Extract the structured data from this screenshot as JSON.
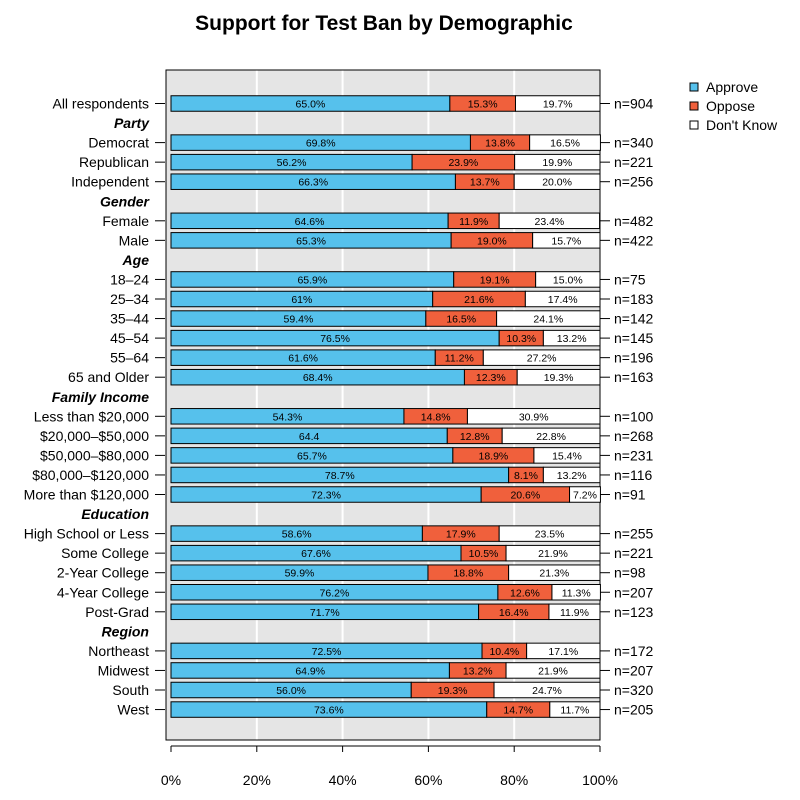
{
  "chart_data": {
    "type": "bar",
    "orientation": "horizontal",
    "stacked": true,
    "title": "Support for Test Ban by Demographic",
    "xlabel": "",
    "ylabel": "",
    "xlim": [
      0,
      100
    ],
    "x_ticks": [
      "0%",
      "20%",
      "40%",
      "60%",
      "80%",
      "100%"
    ],
    "grid": true,
    "legend_position": "top-right",
    "series": [
      {
        "name": "Approve",
        "color": "#56c1ec"
      },
      {
        "name": "Oppose",
        "color": "#f0603c"
      },
      {
        "name": "Don't Know",
        "color": "#ffffff"
      }
    ],
    "rows": [
      {
        "kind": "row",
        "label": "All respondents",
        "values": [
          65.0,
          15.3,
          19.7
        ],
        "texts": [
          "65.0%",
          "15.3%",
          "19.7%"
        ],
        "n": "n=904"
      },
      {
        "kind": "group",
        "label": "Party"
      },
      {
        "kind": "row",
        "label": "Democrat",
        "values": [
          69.8,
          13.8,
          16.5
        ],
        "texts": [
          "69.8%",
          "13.8%",
          "16.5%"
        ],
        "n": "n=340"
      },
      {
        "kind": "row",
        "label": "Republican",
        "values": [
          56.2,
          23.9,
          19.9
        ],
        "texts": [
          "56.2%",
          "23.9%",
          "19.9%"
        ],
        "n": "n=221"
      },
      {
        "kind": "row",
        "label": "Independent",
        "values": [
          66.3,
          13.7,
          20.0
        ],
        "texts": [
          "66.3%",
          "13.7%",
          "20.0%"
        ],
        "n": "n=256"
      },
      {
        "kind": "group",
        "label": "Gender"
      },
      {
        "kind": "row",
        "label": "Female",
        "values": [
          64.6,
          11.9,
          23.4
        ],
        "texts": [
          "64.6%",
          "11.9%",
          "23.4%"
        ],
        "n": "n=482"
      },
      {
        "kind": "row",
        "label": "Male",
        "values": [
          65.3,
          19.0,
          15.7
        ],
        "texts": [
          "65.3%",
          "19.0%",
          "15.7%"
        ],
        "n": "n=422"
      },
      {
        "kind": "group",
        "label": "Age"
      },
      {
        "kind": "row",
        "label": "18–24",
        "values": [
          65.9,
          19.1,
          15.0
        ],
        "texts": [
          "65.9%",
          "19.1%",
          "15.0%"
        ],
        "n": "n=75"
      },
      {
        "kind": "row",
        "label": "25–34",
        "values": [
          61,
          21.6,
          17.4
        ],
        "texts": [
          "61%",
          "21.6%",
          "17.4%"
        ],
        "n": "n=183"
      },
      {
        "kind": "row",
        "label": "35–44",
        "values": [
          59.4,
          16.5,
          24.1
        ],
        "texts": [
          "59.4%",
          "16.5%",
          "24.1%"
        ],
        "n": "n=142"
      },
      {
        "kind": "row",
        "label": "45–54",
        "values": [
          76.5,
          10.3,
          13.2
        ],
        "texts": [
          "76.5%",
          "10.3%",
          "13.2%"
        ],
        "n": "n=145"
      },
      {
        "kind": "row",
        "label": "55–64",
        "values": [
          61.6,
          11.2,
          27.2
        ],
        "texts": [
          "61.6%",
          "11.2%",
          "27.2%"
        ],
        "n": "n=196"
      },
      {
        "kind": "row",
        "label": "65 and Older",
        "values": [
          68.4,
          12.3,
          19.3
        ],
        "texts": [
          "68.4%",
          "12.3%",
          "19.3%"
        ],
        "n": "n=163"
      },
      {
        "kind": "group",
        "label": "Family Income"
      },
      {
        "kind": "row",
        "label": "Less than $20,000",
        "values": [
          54.3,
          14.8,
          30.9
        ],
        "texts": [
          "54.3%",
          "14.8%",
          "30.9%"
        ],
        "n": "n=100"
      },
      {
        "kind": "row",
        "label": "$20,000–$50,000",
        "values": [
          64.4,
          12.8,
          22.8
        ],
        "texts": [
          "64.4",
          "12.8%",
          "22.8%"
        ],
        "n": "n=268"
      },
      {
        "kind": "row",
        "label": "$50,000–$80,000",
        "values": [
          65.7,
          18.9,
          15.4
        ],
        "texts": [
          "65.7%",
          "18.9%",
          "15.4%"
        ],
        "n": "n=231"
      },
      {
        "kind": "row",
        "label": "$80,000–$120,000",
        "values": [
          78.7,
          8.1,
          13.2
        ],
        "texts": [
          "78.7%",
          "8.1%",
          "13.2%"
        ],
        "n": "n=116"
      },
      {
        "kind": "row",
        "label": "More than $120,000",
        "values": [
          72.3,
          20.6,
          7.2
        ],
        "texts": [
          "72.3%",
          "20.6%",
          "7.2%"
        ],
        "n": "n=91"
      },
      {
        "kind": "group",
        "label": "Education"
      },
      {
        "kind": "row",
        "label": "High School or Less",
        "values": [
          58.6,
          17.9,
          23.5
        ],
        "texts": [
          "58.6%",
          "17.9%",
          "23.5%"
        ],
        "n": "n=255"
      },
      {
        "kind": "row",
        "label": "Some College",
        "values": [
          67.6,
          10.5,
          21.9
        ],
        "texts": [
          "67.6%",
          "10.5%",
          "21.9%"
        ],
        "n": "n=221"
      },
      {
        "kind": "row",
        "label": "2-Year College",
        "values": [
          59.9,
          18.8,
          21.3
        ],
        "texts": [
          "59.9%",
          "18.8%",
          "21.3%"
        ],
        "n": "n=98"
      },
      {
        "kind": "row",
        "label": "4-Year College",
        "values": [
          76.2,
          12.6,
          11.3
        ],
        "texts": [
          "76.2%",
          "12.6%",
          "11.3%"
        ],
        "n": "n=207"
      },
      {
        "kind": "row",
        "label": "Post-Grad",
        "values": [
          71.7,
          16.4,
          11.9
        ],
        "texts": [
          "71.7%",
          "16.4%",
          "11.9%"
        ],
        "n": "n=123"
      },
      {
        "kind": "group",
        "label": "Region"
      },
      {
        "kind": "row",
        "label": "Northeast",
        "values": [
          72.5,
          10.4,
          17.1
        ],
        "texts": [
          "72.5%",
          "10.4%",
          "17.1%"
        ],
        "n": "n=172"
      },
      {
        "kind": "row",
        "label": "Midwest",
        "values": [
          64.9,
          13.2,
          21.9
        ],
        "texts": [
          "64.9%",
          "13.2%",
          "21.9%"
        ],
        "n": "n=207"
      },
      {
        "kind": "row",
        "label": "South",
        "values": [
          56.0,
          19.3,
          24.7
        ],
        "texts": [
          "56.0%",
          "19.3%",
          "24.7%"
        ],
        "n": "n=320"
      },
      {
        "kind": "row",
        "label": "West",
        "values": [
          73.6,
          14.7,
          11.7
        ],
        "texts": [
          "73.6%",
          "14.7%",
          "11.7%"
        ],
        "n": "n=205"
      }
    ]
  }
}
